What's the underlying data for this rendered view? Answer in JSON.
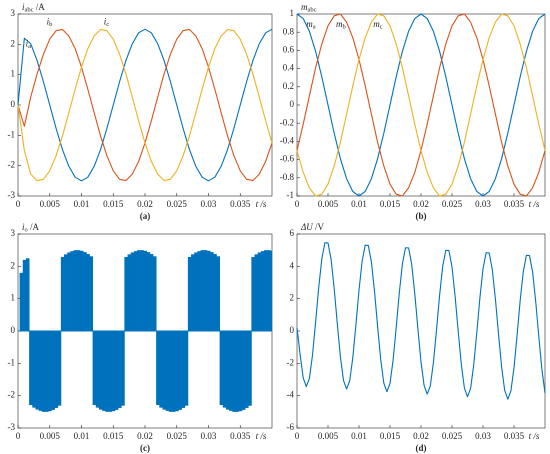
{
  "chart_data": [
    {
      "type": "line",
      "caption": "(a)",
      "xlabel": "t /s",
      "ylabel": {
        "symbol": "i",
        "subscript": "abc",
        "unit": " /A"
      },
      "xlim": [
        0,
        0.04
      ],
      "ylim": [
        -3,
        3
      ],
      "xticks": [
        0,
        0.005,
        0.01,
        0.015,
        0.02,
        0.025,
        0.03,
        0.035
      ],
      "yticks": [
        -3,
        -2,
        -1,
        0,
        1,
        2,
        3
      ],
      "x": [
        0,
        0.001,
        0.002,
        0.003,
        0.004,
        0.005,
        0.006,
        0.007,
        0.008,
        0.009,
        0.01,
        0.011,
        0.012,
        0.013,
        0.014,
        0.015,
        0.016,
        0.017,
        0.018,
        0.019,
        0.02,
        0.021,
        0.022,
        0.023,
        0.024,
        0.025,
        0.026,
        0.027,
        0.028,
        0.029,
        0.03,
        0.031,
        0.032,
        0.033,
        0.034,
        0.035,
        0.036,
        0.037,
        0.038,
        0.039,
        0.04
      ],
      "series": [
        {
          "symbol": "i",
          "subscript": "a",
          "color": "#0072BD",
          "values": [
            0,
            2.2,
            2.02,
            1.47,
            0.77,
            0,
            -0.77,
            -1.47,
            -2.02,
            -2.38,
            -2.5,
            -2.38,
            -2.02,
            -1.47,
            -0.77,
            0,
            0.77,
            1.47,
            2.02,
            2.38,
            2.5,
            2.38,
            2.02,
            1.47,
            0.77,
            0,
            -0.77,
            -1.47,
            -2.02,
            -2.38,
            -2.5,
            -2.38,
            -2.02,
            -1.47,
            -0.77,
            0,
            0.77,
            1.47,
            2.02,
            2.38,
            2.5
          ]
        },
        {
          "symbol": "i",
          "subscript": "b",
          "color": "#D95319",
          "values": [
            0,
            -0.7,
            0.26,
            1.02,
            1.67,
            2.17,
            2.45,
            2.49,
            2.28,
            1.86,
            1.25,
            0.52,
            -0.26,
            -1.02,
            -1.67,
            -2.17,
            -2.45,
            -2.49,
            -2.28,
            -1.86,
            -1.25,
            -0.52,
            0.26,
            1.02,
            1.67,
            2.17,
            2.45,
            2.49,
            2.28,
            1.86,
            1.25,
            0.52,
            -0.26,
            -1.02,
            -1.67,
            -2.17,
            -2.45,
            -2.49,
            -2.28,
            -1.86,
            -1.25
          ]
        },
        {
          "symbol": "i",
          "subscript": "c",
          "color": "#EDB120",
          "values": [
            0,
            -1.5,
            -2.28,
            -2.49,
            -2.45,
            -2.17,
            -1.67,
            -1.02,
            -0.26,
            0.52,
            1.25,
            1.86,
            2.28,
            2.49,
            2.45,
            2.17,
            1.67,
            1.02,
            0.26,
            -0.52,
            -1.25,
            -1.86,
            -2.28,
            -2.49,
            -2.45,
            -2.17,
            -1.67,
            -1.02,
            -0.26,
            0.52,
            1.25,
            1.86,
            2.28,
            2.49,
            2.45,
            2.17,
            1.67,
            1.02,
            0.26,
            -0.52,
            -1.25
          ]
        }
      ]
    },
    {
      "type": "line",
      "caption": "(b)",
      "xlabel": "t /s",
      "ylabel": {
        "symbol": "m",
        "subscript": "abc"
      },
      "xlim": [
        0,
        0.04
      ],
      "ylim": [
        -1,
        1
      ],
      "xticks": [
        0,
        0.005,
        0.01,
        0.015,
        0.02,
        0.025,
        0.03,
        0.035
      ],
      "yticks": [
        -1,
        -0.8,
        -0.6,
        -0.4,
        -0.2,
        0,
        0.2,
        0.4,
        0.6,
        0.8,
        1
      ],
      "x": [
        0,
        0.001,
        0.002,
        0.003,
        0.004,
        0.005,
        0.006,
        0.007,
        0.008,
        0.009,
        0.01,
        0.011,
        0.012,
        0.013,
        0.014,
        0.015,
        0.016,
        0.017,
        0.018,
        0.019,
        0.02,
        0.021,
        0.022,
        0.023,
        0.024,
        0.025,
        0.026,
        0.027,
        0.028,
        0.029,
        0.03,
        0.031,
        0.032,
        0.033,
        0.034,
        0.035,
        0.036,
        0.037,
        0.038,
        0.039,
        0.04
      ],
      "series": [
        {
          "symbol": "m",
          "subscript": "a",
          "color": "#0072BD",
          "values": [
            1,
            0.95,
            0.81,
            0.59,
            0.31,
            0,
            -0.31,
            -0.59,
            -0.81,
            -0.95,
            -1,
            -0.95,
            -0.81,
            -0.59,
            -0.31,
            0,
            0.31,
            0.59,
            0.81,
            0.95,
            1,
            0.95,
            0.81,
            0.59,
            0.31,
            0,
            -0.31,
            -0.59,
            -0.81,
            -0.95,
            -1,
            -0.95,
            -0.81,
            -0.59,
            -0.31,
            0,
            0.31,
            0.59,
            0.81,
            0.95,
            1
          ]
        },
        {
          "symbol": "m",
          "subscript": "b",
          "color": "#D95319",
          "values": [
            -0.5,
            -0.21,
            0.1,
            0.41,
            0.67,
            0.87,
            0.98,
            1,
            0.91,
            0.74,
            0.5,
            0.21,
            -0.1,
            -0.41,
            -0.67,
            -0.87,
            -0.98,
            -1,
            -0.91,
            -0.74,
            -0.5,
            -0.21,
            0.1,
            0.41,
            0.67,
            0.87,
            0.98,
            1,
            0.91,
            0.74,
            0.5,
            0.21,
            -0.1,
            -0.41,
            -0.67,
            -0.87,
            -0.98,
            -1,
            -0.91,
            -0.74,
            -0.5
          ]
        },
        {
          "symbol": "m",
          "subscript": "c",
          "color": "#EDB120",
          "values": [
            -0.5,
            -0.74,
            -0.91,
            -1,
            -0.98,
            -0.87,
            -0.67,
            -0.41,
            -0.1,
            0.21,
            0.5,
            0.74,
            0.91,
            1,
            0.98,
            0.87,
            0.67,
            0.41,
            0.1,
            -0.21,
            -0.5,
            -0.74,
            -0.91,
            -1,
            -0.98,
            -0.87,
            -0.67,
            -0.41,
            -0.1,
            0.21,
            0.5,
            0.74,
            0.91,
            1,
            0.98,
            0.87,
            0.67,
            0.41,
            0.1,
            -0.21,
            -0.5
          ]
        }
      ]
    },
    {
      "type": "stem",
      "caption": "(c)",
      "xlabel": "t /s",
      "ylabel": {
        "symbol": "i",
        "subscript": "o",
        "unit": " /A"
      },
      "xlim": [
        0,
        0.04
      ],
      "ylim": [
        -3,
        3
      ],
      "xticks": [
        0,
        0.005,
        0.01,
        0.015,
        0.02,
        0.025,
        0.03,
        0.035
      ],
      "yticks": [
        -3,
        -2,
        -1,
        0,
        1,
        2,
        3
      ],
      "x": [
        0,
        0.0005,
        0.001,
        0.0015,
        0.002,
        0.0025,
        0.003,
        0.0035,
        0.004,
        0.0045,
        0.005,
        0.0055,
        0.006,
        0.0065,
        0.007,
        0.0075,
        0.008,
        0.0085,
        0.009,
        0.0095,
        0.01,
        0.0105,
        0.011,
        0.0115,
        0.012,
        0.0125,
        0.013,
        0.0135,
        0.014,
        0.0145,
        0.015,
        0.0155,
        0.016,
        0.0165,
        0.017,
        0.0175,
        0.018,
        0.0185,
        0.019,
        0.0195,
        0.02,
        0.0205,
        0.021,
        0.0215,
        0.022,
        0.0225,
        0.023,
        0.0235,
        0.024,
        0.0245,
        0.025,
        0.0255,
        0.026,
        0.0265,
        0.027,
        0.0275,
        0.028,
        0.0285,
        0.029,
        0.0295,
        0.03,
        0.0305,
        0.031,
        0.0315,
        0.032,
        0.0325,
        0.033,
        0.0335,
        0.034,
        0.0345,
        0.035,
        0.0355,
        0.036,
        0.0365,
        0.037,
        0.0375,
        0.038,
        0.0385,
        0.039,
        0.0395,
        0.04
      ],
      "series": [
        {
          "color": "#0072BD",
          "values": [
            0,
            1.8,
            2.2,
            2.25,
            -2.29,
            -2.37,
            -2.43,
            -2.47,
            -2.5,
            -2.5,
            -2.48,
            -2.44,
            -2.38,
            -2.31,
            2.29,
            2.37,
            2.43,
            2.47,
            2.5,
            2.5,
            2.48,
            2.44,
            2.38,
            2.31,
            -2.29,
            -2.37,
            -2.43,
            -2.47,
            -2.5,
            -2.5,
            -2.48,
            -2.44,
            -2.38,
            -2.31,
            2.29,
            2.37,
            2.43,
            2.47,
            2.5,
            2.5,
            2.48,
            2.44,
            2.38,
            2.31,
            -2.29,
            -2.37,
            -2.43,
            -2.47,
            -2.5,
            -2.5,
            -2.48,
            -2.44,
            -2.38,
            -2.31,
            2.29,
            2.37,
            2.43,
            2.47,
            2.5,
            2.5,
            2.48,
            2.44,
            2.38,
            2.31,
            -2.29,
            -2.37,
            -2.43,
            -2.47,
            -2.5,
            -2.5,
            -2.48,
            -2.44,
            -2.38,
            -2.31,
            2.29,
            2.37,
            2.43,
            2.47,
            2.5,
            2.5,
            2.48
          ]
        }
      ]
    },
    {
      "type": "line",
      "caption": "(d)",
      "xlabel": "t /s",
      "ylabel": {
        "symbol": "ΔU",
        "unit": " /V"
      },
      "xlim": [
        0,
        0.04
      ],
      "ylim": [
        -6,
        6
      ],
      "xticks": [
        0,
        0.005,
        0.01,
        0.015,
        0.02,
        0.025,
        0.03,
        0.035
      ],
      "yticks": [
        -6,
        -4,
        -2,
        0,
        2,
        4,
        6
      ],
      "x": [
        0,
        0.0005,
        0.001,
        0.0015,
        0.002,
        0.0025,
        0.003,
        0.0035,
        0.004,
        0.0045,
        0.005,
        0.0055,
        0.006,
        0.0065,
        0.007,
        0.0075,
        0.008,
        0.0085,
        0.009,
        0.0095,
        0.01,
        0.0105,
        0.011,
        0.0115,
        0.012,
        0.0125,
        0.013,
        0.0135,
        0.014,
        0.0145,
        0.015,
        0.0155,
        0.016,
        0.0165,
        0.017,
        0.0175,
        0.018,
        0.0185,
        0.019,
        0.0195,
        0.02,
        0.0205,
        0.021,
        0.0215,
        0.022,
        0.0225,
        0.023,
        0.0235,
        0.024,
        0.0245,
        0.025,
        0.0255,
        0.026,
        0.0265,
        0.027,
        0.0275,
        0.028,
        0.0285,
        0.029,
        0.0295,
        0.03,
        0.0305,
        0.031,
        0.0315,
        0.032,
        0.0325,
        0.033,
        0.0335,
        0.034,
        0.0345,
        0.035,
        0.0355,
        0.036,
        0.0365,
        0.037,
        0.0375,
        0.038,
        0.0385,
        0.039,
        0.0395,
        0.04
      ],
      "series": [
        {
          "color": "#0072BD",
          "values": [
            0.2,
            -1.45,
            -2.9,
            -3.44,
            -2.93,
            -1.49,
            0.53,
            2.68,
            4.46,
            5.46,
            5.45,
            4.43,
            2.62,
            0.45,
            -1.6,
            -3.06,
            -3.59,
            -3.08,
            -1.65,
            0.37,
            2.52,
            4.31,
            5.31,
            5.29,
            4.27,
            2.46,
            0.29,
            -1.75,
            -3.22,
            -3.75,
            -3.24,
            -1.8,
            0.22,
            2.36,
            4.15,
            5.15,
            5.14,
            4.12,
            2.3,
            0.13,
            -1.91,
            -3.37,
            -3.9,
            -3.4,
            -1.96,
            0.06,
            2.21,
            4,
            4.99,
            4.98,
            3.96,
            2.15,
            -0.02,
            -2.07,
            -3.53,
            -4.06,
            -3.55,
            -2.11,
            -0.1,
            2.05,
            3.84,
            4.84,
            4.83,
            3.8,
            1.99,
            -0.18,
            -2.22,
            -3.68,
            -4.22,
            -3.71,
            -2.27,
            -0.25,
            1.9,
            3.68,
            4.68,
            4.67,
            3.65,
            1.84,
            -0.34,
            -2.38,
            -3.84
          ]
        }
      ]
    }
  ]
}
